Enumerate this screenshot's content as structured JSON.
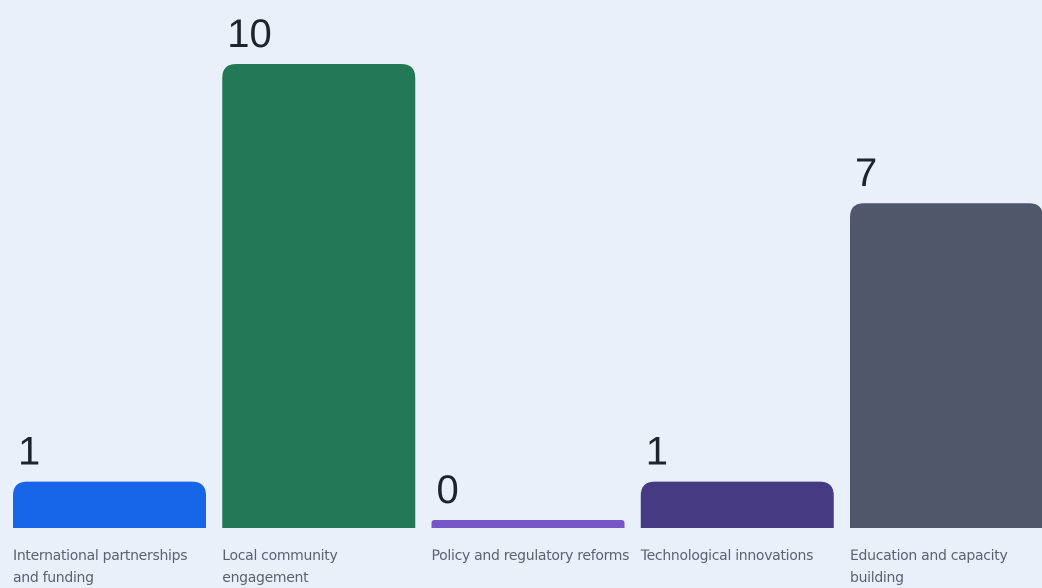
{
  "chart_data": {
    "type": "bar",
    "categories": [
      "International partnerships and funding",
      "Local community engagement",
      "Policy and regulatory reforms",
      "Technological innovations",
      "Education and capacity building"
    ],
    "values": [
      1,
      10,
      0,
      1,
      7
    ],
    "colors": [
      "#1766ea",
      "#237856",
      "#7756c7",
      "#463a82",
      "#51576b"
    ],
    "title": "",
    "xlabel": "",
    "ylabel": "",
    "ylim": [
      0,
      10
    ],
    "grid": false,
    "legend": "none"
  }
}
